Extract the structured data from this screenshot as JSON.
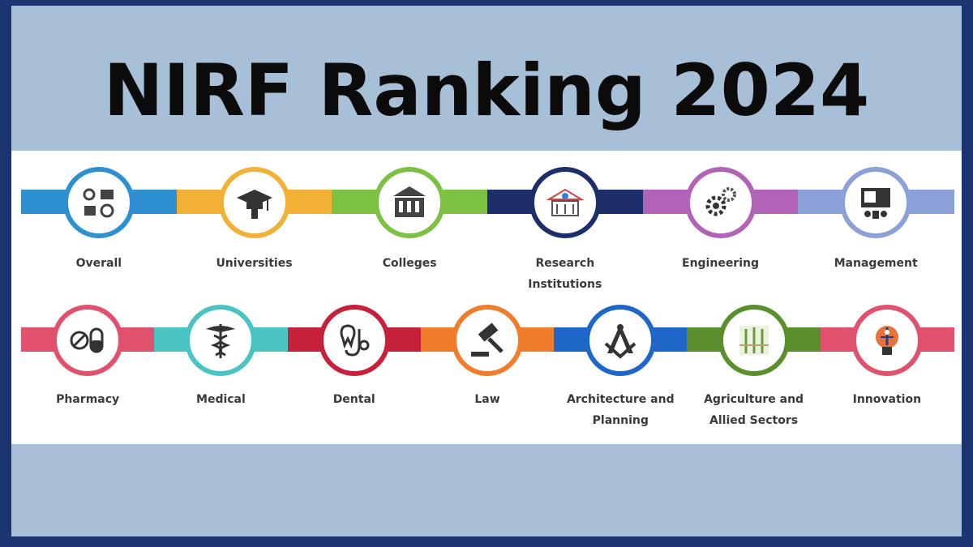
{
  "title": "NIRF Ranking 2024",
  "colors": {
    "frame_border": "#1a3570",
    "frame_bg": "#a8c0d7",
    "panel_bg": "#ffffff"
  },
  "categories_row1": [
    {
      "label": "Overall",
      "icon": "overall-icon",
      "color": "#2e8fd1"
    },
    {
      "label": "Universities",
      "icon": "graduation-cap-icon",
      "color": "#f2b035"
    },
    {
      "label": "Colleges",
      "icon": "college-building-icon",
      "color": "#7cc142"
    },
    {
      "label": "Research Institutions",
      "icon": "research-building-icon",
      "color": "#1c2f6b"
    },
    {
      "label": "Engineering",
      "icon": "gears-icon",
      "color": "#b263b8"
    },
    {
      "label": "Management",
      "icon": "presentation-board-icon",
      "color": "#8aa0d6"
    }
  ],
  "categories_row2": [
    {
      "label": "Pharmacy",
      "icon": "pill-icon",
      "color": "#e0516e"
    },
    {
      "label": "Medical",
      "icon": "caduceus-icon",
      "color": "#49c4c2"
    },
    {
      "label": "Dental",
      "icon": "tooth-stethoscope-icon",
      "color": "#c7203b"
    },
    {
      "label": "Law",
      "icon": "gavel-icon",
      "color": "#f07d2c"
    },
    {
      "label": "Architecture and Planning",
      "icon": "compass-square-icon",
      "color": "#1f66c9"
    },
    {
      "label": "Agriculture and Allied Sectors",
      "icon": "crop-field-icon",
      "color": "#5b8f2e"
    },
    {
      "label": "Innovation",
      "icon": "lightbulb-circuit-icon",
      "color": "#e0516e"
    }
  ]
}
